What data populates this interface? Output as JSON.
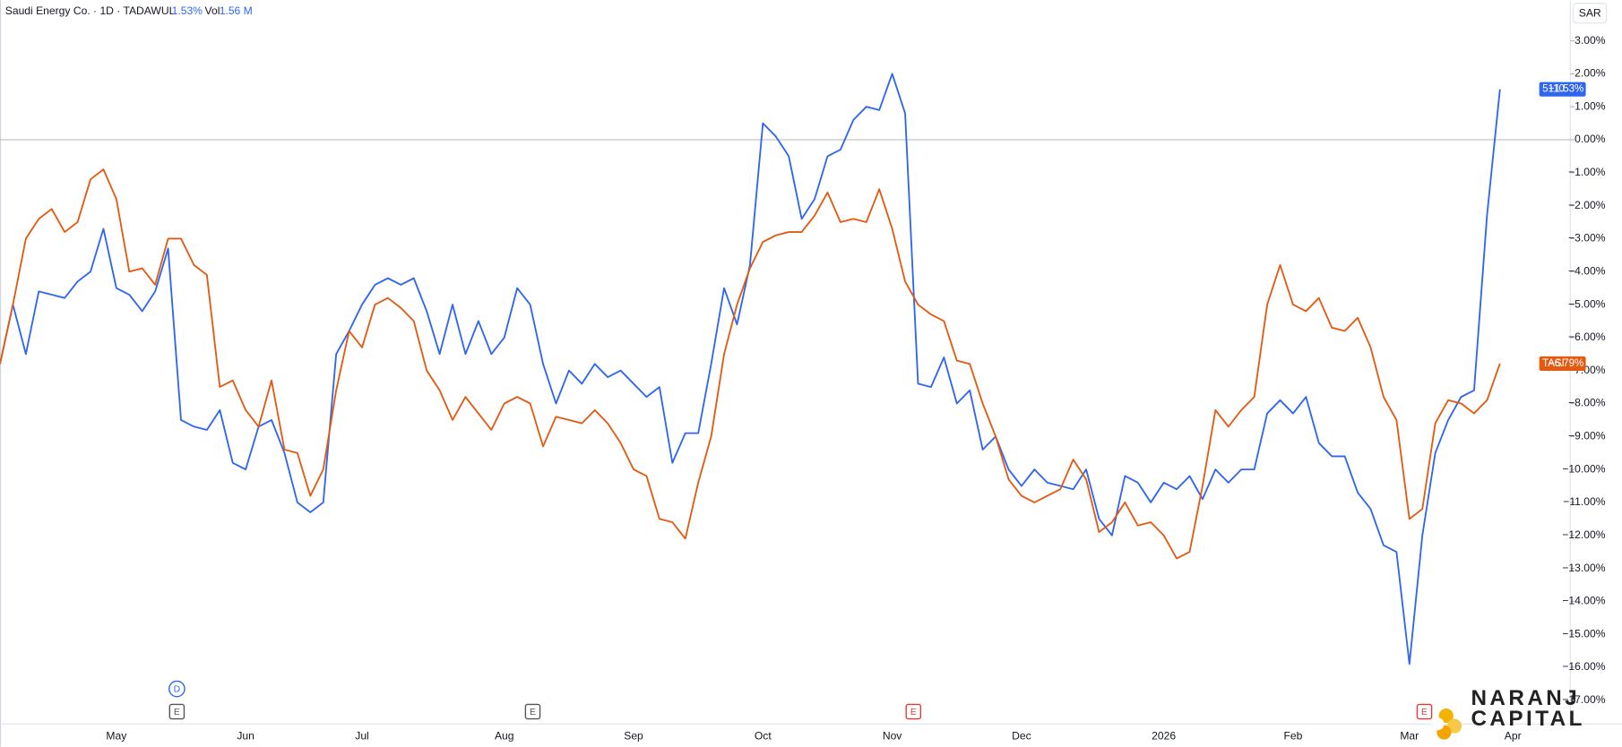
{
  "chart_data": {
    "type": "line",
    "title": "Saudi Energy Co. · 1D · TADAWUL",
    "header_change": "1.53%",
    "header_volume_label": "Vol",
    "header_volume": "1.56 M",
    "currency": "SAR",
    "categories": [
      null,
      null,
      null,
      null,
      null,
      null,
      null,
      null,
      null,
      "May",
      null,
      null,
      null,
      null,
      null,
      null,
      null,
      null,
      null,
      "Jun",
      null,
      null,
      null,
      null,
      null,
      null,
      null,
      null,
      "Jul",
      null,
      null,
      null,
      null,
      null,
      null,
      null,
      null,
      null,
      null,
      "Aug",
      null,
      null,
      null,
      null,
      null,
      null,
      null,
      null,
      null,
      "Sep",
      null,
      null,
      null,
      null,
      null,
      null,
      null,
      null,
      null,
      "Oct",
      null,
      null,
      null,
      null,
      null,
      null,
      null,
      null,
      null,
      "Nov",
      null,
      null,
      null,
      null,
      null,
      null,
      null,
      null,
      null,
      "Dec",
      null,
      null,
      null,
      null,
      null,
      null,
      null,
      null,
      null,
      null,
      "2026",
      null,
      null,
      null,
      null,
      null,
      null,
      null,
      null,
      null,
      "Feb",
      null,
      null,
      null,
      null,
      null,
      null,
      null,
      null,
      "Mar",
      null,
      null,
      null,
      null,
      null,
      null,
      null,
      "Apr"
    ],
    "series": [
      {
        "name": "5110",
        "color": "#2f66f0",
        "last_value_label": "+1.53%",
        "values": [
          -6.8,
          -5.0,
          -6.5,
          -4.6,
          -4.7,
          -4.8,
          -4.3,
          -4.0,
          -2.7,
          -4.5,
          -4.7,
          -5.2,
          -4.6,
          -3.3,
          -8.5,
          -8.7,
          -8.8,
          -8.2,
          -9.8,
          -10.0,
          -8.7,
          -8.5,
          -9.5,
          -11.0,
          -11.3,
          -11.0,
          -6.5,
          -5.8,
          -5.0,
          -4.4,
          -4.2,
          -4.4,
          -4.2,
          -5.2,
          -6.5,
          -5.0,
          -6.5,
          -5.5,
          -6.5,
          -6.0,
          -4.5,
          -5.0,
          -6.8,
          -8.0,
          -7.0,
          -7.4,
          -6.8,
          -7.2,
          -7.0,
          -7.4,
          -7.8,
          -7.5,
          -9.8,
          -8.9,
          -8.9,
          -6.8,
          -4.5,
          -5.6,
          -3.8,
          0.5,
          0.1,
          -0.5,
          -2.4,
          -1.8,
          -0.5,
          -0.3,
          0.6,
          1.0,
          0.9,
          2.0,
          0.8,
          -7.4,
          -7.5,
          -6.6,
          -8.0,
          -7.6,
          -9.4,
          -9.0,
          -10.0,
          -10.5,
          -10.0,
          -10.4,
          -10.5,
          -10.6,
          -10.0,
          -11.5,
          -12.0,
          -10.2,
          -10.4,
          -11.0,
          -10.4,
          -10.6,
          -10.2,
          -10.9,
          -10.0,
          -10.4,
          -10.0,
          -10.0,
          -8.3,
          -7.9,
          -8.3,
          -7.8,
          -9.2,
          -9.6,
          -9.6,
          -10.7,
          -11.2,
          -12.3,
          -12.5,
          -15.9,
          -12.0,
          -9.5,
          -8.5,
          -7.8,
          -7.6,
          -2.3,
          1.53,
          null
        ]
      },
      {
        "name": "TASI",
        "color": "#e35a12",
        "last_value_label": "−6.79%",
        "values": [
          -6.8,
          -5.0,
          -3.0,
          -2.4,
          -2.1,
          -2.8,
          -2.5,
          -1.2,
          -0.9,
          -1.8,
          -4.0,
          -3.9,
          -4.4,
          -3.0,
          -3.0,
          -3.8,
          -4.1,
          -7.5,
          -7.3,
          -8.2,
          -8.7,
          -7.3,
          -9.4,
          -9.5,
          -10.8,
          -10.0,
          -7.6,
          -5.8,
          -6.3,
          -5.0,
          -4.8,
          -5.1,
          -5.5,
          -7.0,
          -7.6,
          -8.5,
          -7.8,
          -8.3,
          -8.8,
          -8.0,
          -7.8,
          -8.0,
          -9.3,
          -8.4,
          -8.5,
          -8.6,
          -8.2,
          -8.6,
          -9.2,
          -10.0,
          -10.2,
          -11.5,
          -11.6,
          -12.1,
          -10.4,
          -9.0,
          -6.5,
          -5.0,
          -3.9,
          -3.1,
          -2.9,
          -2.8,
          -2.8,
          -2.3,
          -1.6,
          -2.5,
          -2.4,
          -2.5,
          -1.5,
          -2.7,
          -4.3,
          -5.0,
          -5.3,
          -5.5,
          -6.7,
          -6.8,
          -8.0,
          -9.0,
          -10.3,
          -10.8,
          -11.0,
          -10.8,
          -10.6,
          -9.7,
          -10.3,
          -11.9,
          -11.6,
          -11.0,
          -11.7,
          -11.6,
          -12.0,
          -12.7,
          -12.5,
          -10.5,
          -8.2,
          -8.7,
          -8.2,
          -7.8,
          -5.0,
          -3.8,
          -5.0,
          -5.2,
          -4.8,
          -5.7,
          -5.8,
          -5.4,
          -6.3,
          -7.8,
          -8.5,
          -11.5,
          -11.2,
          -8.6,
          -7.9,
          -8.0,
          -8.3,
          -7.9,
          -6.79,
          null
        ]
      }
    ],
    "ylim": [
      -17.72,
      4.23
    ],
    "yticks": [
      {
        "value": 3,
        "label": "3.00%"
      },
      {
        "value": 2,
        "label": "2.00%"
      },
      {
        "value": 1,
        "label": "1.00%"
      },
      {
        "value": 0,
        "label": "0.00%"
      },
      {
        "value": -1,
        "label": "−1.00%"
      },
      {
        "value": -2,
        "label": "−2.00%"
      },
      {
        "value": -3,
        "label": "−3.00%"
      },
      {
        "value": -4,
        "label": "−4.00%"
      },
      {
        "value": -5,
        "label": "−5.00%"
      },
      {
        "value": -6,
        "label": "−6.00%"
      },
      {
        "value": -7,
        "label": "−7.00%"
      },
      {
        "value": -8,
        "label": "−8.00%"
      },
      {
        "value": -9,
        "label": "−9.00%"
      },
      {
        "value": -10,
        "label": "−10.00%"
      },
      {
        "value": -11,
        "label": "−11.00%"
      },
      {
        "value": -12,
        "label": "−12.00%"
      },
      {
        "value": -13,
        "label": "−13.00%"
      },
      {
        "value": -14,
        "label": "−14.00%"
      },
      {
        "value": -15,
        "label": "−15.00%"
      },
      {
        "value": -16,
        "label": "−16.00%"
      },
      {
        "value": -17,
        "label": "−17.00%"
      }
    ],
    "zero_line": true,
    "events": [
      "D",
      "E",
      "E",
      "E",
      "E"
    ],
    "logo": [
      "NARANJ",
      "CAPITAL"
    ]
  }
}
